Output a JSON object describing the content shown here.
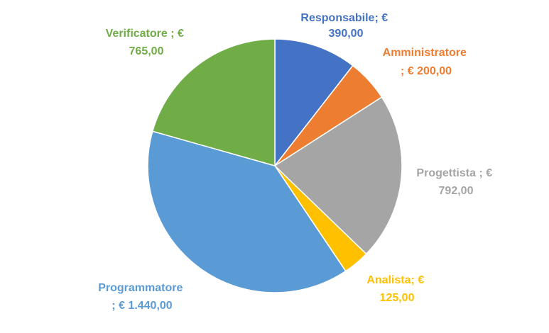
{
  "chart_data": {
    "type": "pie",
    "title": "",
    "currency": "€",
    "slices": [
      {
        "category": "Responsabile",
        "value": 390.0,
        "label_line1": "Responsabile; €",
        "label_line2": "390,00",
        "color": "#4472C4"
      },
      {
        "category": "Amministratore",
        "value": 200.0,
        "label_line1": "Amministratore",
        "label_line2": "; € 200,00",
        "color": "#ED7D31"
      },
      {
        "category": "Progettista",
        "value": 792.0,
        "label_line1": "Progettista ; €",
        "label_line2": "792,00",
        "color": "#A5A5A5"
      },
      {
        "category": "Analista",
        "value": 125.0,
        "label_line1": "Analista; €",
        "label_line2": "125,00",
        "color": "#FFC000"
      },
      {
        "category": "Programmatore",
        "value": 1440.0,
        "label_line1": "Programmatore",
        "label_line2": "; € 1.440,00",
        "color": "#5B9BD5"
      },
      {
        "category": "Verificatore",
        "value": 765.0,
        "label_line1": "Verificatore ; €",
        "label_line2": "765,00",
        "color": "#70AD47"
      }
    ],
    "start_angle": "12 o'clock",
    "direction": "clockwise",
    "legend": "none",
    "data_labels": "outside"
  }
}
